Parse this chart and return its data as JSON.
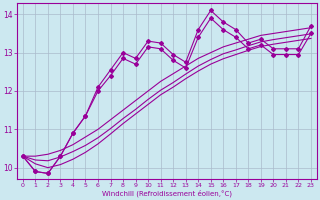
{
  "xlabel": "Windchill (Refroidissement éolien,°C)",
  "x_data": [
    0,
    1,
    2,
    3,
    4,
    5,
    6,
    7,
    8,
    9,
    10,
    11,
    12,
    13,
    14,
    15,
    16,
    17,
    18,
    19,
    20,
    21,
    22,
    23
  ],
  "main_line": [
    10.3,
    9.9,
    9.85,
    10.3,
    10.9,
    11.35,
    12.1,
    12.55,
    13.0,
    12.85,
    13.3,
    13.25,
    12.95,
    12.75,
    13.6,
    14.1,
    13.8,
    13.6,
    13.25,
    13.35,
    13.1,
    13.1,
    13.1,
    13.7
  ],
  "line2": [
    10.3,
    9.9,
    9.85,
    10.3,
    10.9,
    11.35,
    12.0,
    12.4,
    12.85,
    12.7,
    13.15,
    13.1,
    12.8,
    12.6,
    13.4,
    13.9,
    13.6,
    13.4,
    13.1,
    13.2,
    12.95,
    12.95,
    12.95,
    13.5
  ],
  "ref_line1": [
    10.3,
    10.3,
    10.35,
    10.45,
    10.6,
    10.8,
    11.0,
    11.25,
    11.5,
    11.75,
    12.0,
    12.25,
    12.45,
    12.65,
    12.85,
    13.0,
    13.15,
    13.25,
    13.35,
    13.45,
    13.5,
    13.55,
    13.6,
    13.65
  ],
  "ref_line2": [
    10.3,
    10.2,
    10.18,
    10.28,
    10.42,
    10.58,
    10.78,
    11.02,
    11.28,
    11.52,
    11.78,
    12.02,
    12.22,
    12.44,
    12.65,
    12.82,
    12.97,
    13.07,
    13.18,
    13.28,
    13.34,
    13.39,
    13.44,
    13.49
  ],
  "ref_line3": [
    10.3,
    10.1,
    10.0,
    10.08,
    10.22,
    10.4,
    10.62,
    10.88,
    11.15,
    11.4,
    11.65,
    11.9,
    12.1,
    12.32,
    12.52,
    12.7,
    12.84,
    12.95,
    13.06,
    13.16,
    13.22,
    13.27,
    13.32,
    13.37
  ],
  "line_color": "#990099",
  "bg_color": "#cce8f0",
  "grid_color": "#aabbcc",
  "ylim": [
    9.7,
    14.3
  ],
  "yticks": [
    10,
    11,
    12,
    13,
    14
  ],
  "xlim": [
    -0.5,
    23.5
  ],
  "xticks": [
    0,
    1,
    2,
    3,
    4,
    5,
    6,
    7,
    8,
    9,
    10,
    11,
    12,
    13,
    14,
    15,
    16,
    17,
    18,
    19,
    20,
    21,
    22,
    23
  ]
}
